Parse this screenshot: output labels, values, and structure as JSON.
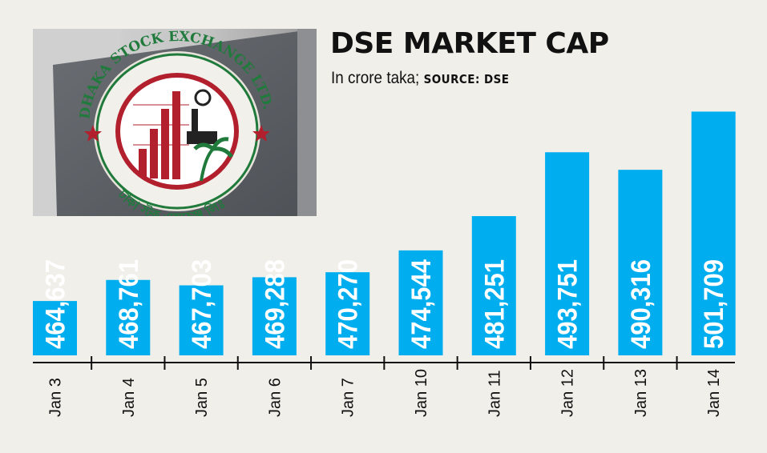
{
  "header": {
    "title": "DSE MARKET CAP",
    "subtitle_main": "In crore taka;",
    "subtitle_source": "SOURCE: DSE"
  },
  "photo": {
    "seal_text_english": "DHAKA STOCK EXCHANGE LTD.",
    "seal_text_bengali": "ঢাকা স্টক এক্সচেঞ্জ লিঃ"
  },
  "colors": {
    "bar": "#00aeef",
    "bar_label": "#ffffff",
    "axis": "#111111",
    "background": "#f1efe9"
  },
  "chart_data": {
    "type": "bar",
    "title": "DSE MARKET CAP",
    "subtitle": "In crore taka; SOURCE: DSE",
    "categories": [
      "Jan 3",
      "Jan 4",
      "Jan 5",
      "Jan 6",
      "Jan 7",
      "Jan 10",
      "Jan 11",
      "Jan 12",
      "Jan 13",
      "Jan 14"
    ],
    "values": [
      464637,
      468761,
      467703,
      469288,
      470270,
      474544,
      481251,
      493751,
      490316,
      501709
    ],
    "value_labels": [
      "464,637",
      "468,761",
      "467,703",
      "469,288",
      "470,270",
      "474,544",
      "481,251",
      "493,751",
      "490,316",
      "501,709"
    ],
    "xlabel": "",
    "ylabel": "",
    "ylim": [
      454000,
      503500
    ],
    "grid": false,
    "legend": "none"
  }
}
